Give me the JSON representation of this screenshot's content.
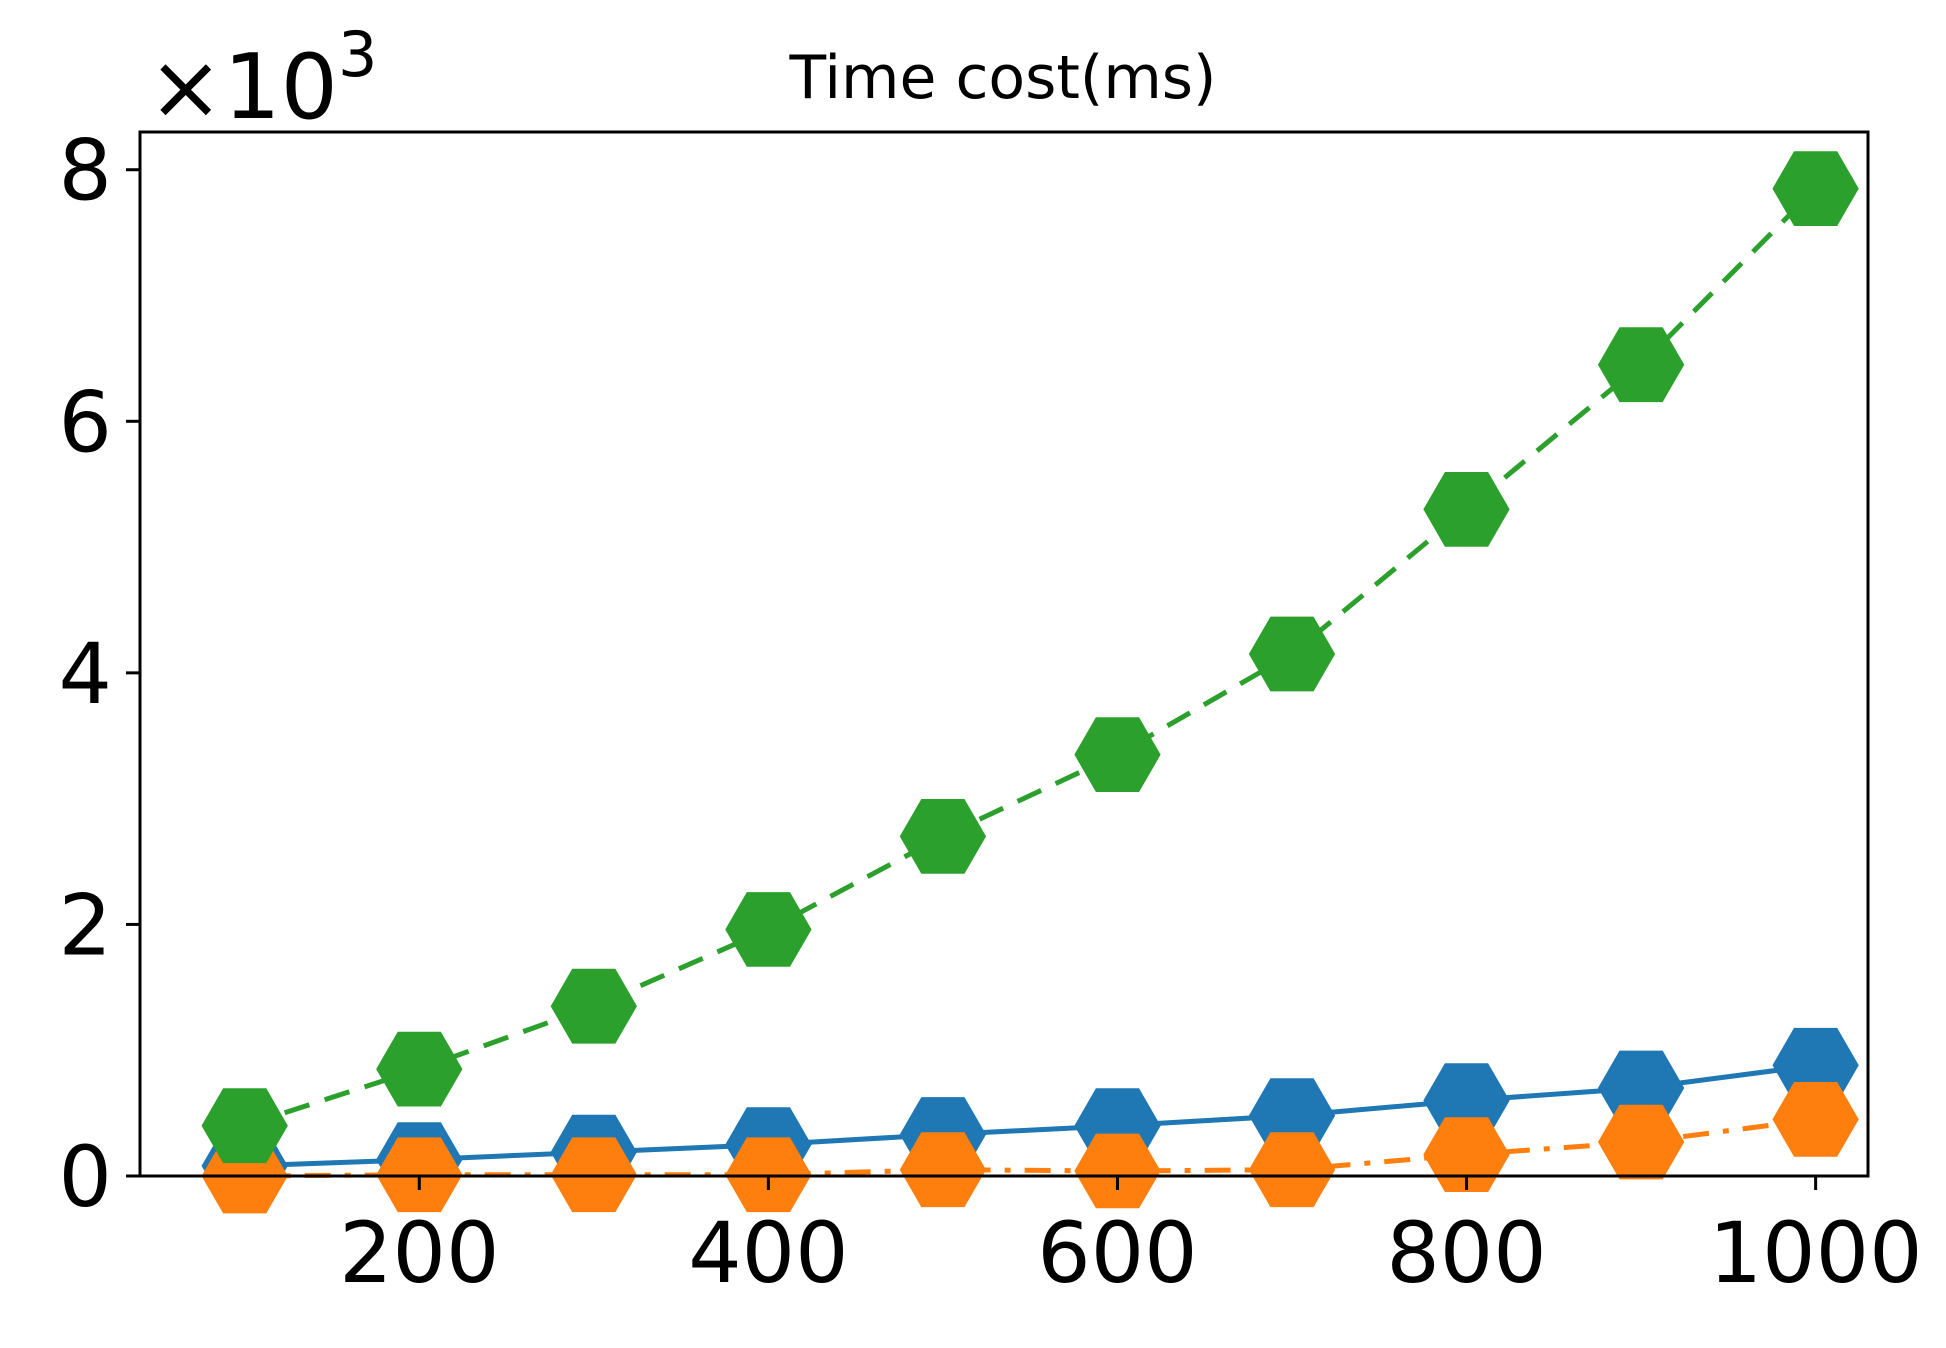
{
  "chart_data": {
    "type": "line",
    "title": "Time cost(ms)",
    "xlabel": "",
    "ylabel": "",
    "y_multiplier": {
      "base": "×10",
      "exponent": "3"
    },
    "x": [
      100,
      200,
      300,
      400,
      500,
      600,
      700,
      800,
      900,
      1000
    ],
    "x_ticks": [
      200,
      400,
      600,
      800,
      1000
    ],
    "y_ticks": [
      0,
      2,
      4,
      6,
      8
    ],
    "xlim": [
      40,
      1030
    ],
    "ylim": [
      0,
      8.3
    ],
    "grid": false,
    "legend": "none",
    "marker": "hexagon",
    "series": [
      {
        "color": "#1f77b4",
        "line_style": "solid",
        "values": [
          0.08,
          0.13,
          0.19,
          0.25,
          0.33,
          0.4,
          0.48,
          0.6,
          0.7,
          0.88
        ]
      },
      {
        "color": "#ff7f0e",
        "line_style": "dashdot",
        "values": [
          0.0,
          0.01,
          0.01,
          0.01,
          0.05,
          0.04,
          0.05,
          0.17,
          0.27,
          0.45
        ]
      },
      {
        "color": "#2ca02c",
        "line_style": "dashed",
        "values": [
          0.4,
          0.85,
          1.35,
          1.96,
          2.7,
          3.35,
          4.15,
          5.3,
          6.45,
          7.85
        ]
      }
    ]
  }
}
